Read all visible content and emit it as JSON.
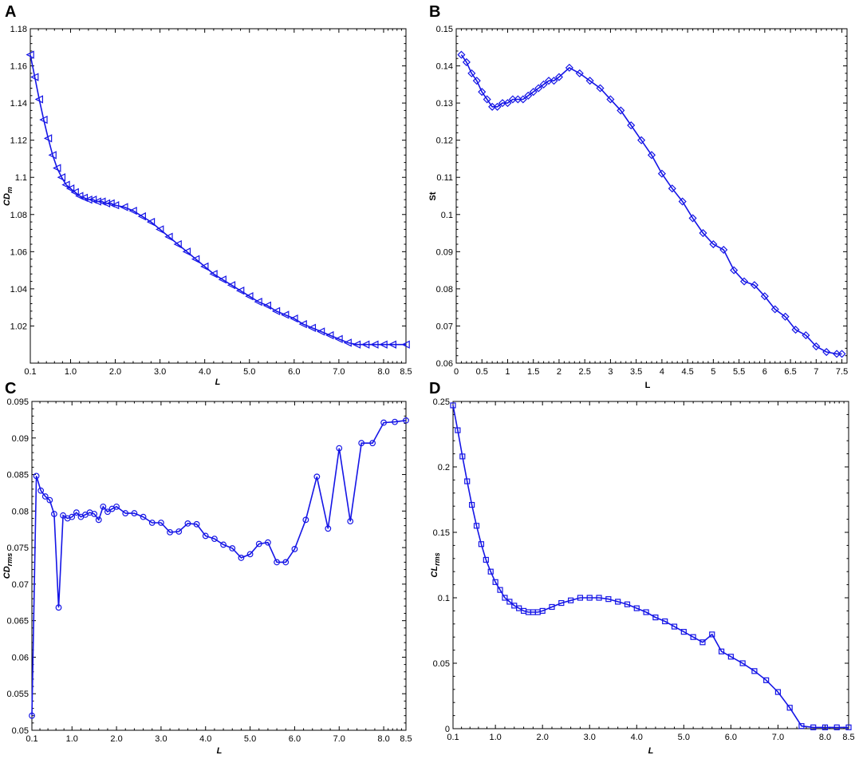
{
  "chart_data": [
    {
      "panel": "A",
      "type": "line",
      "marker": "triangle-left",
      "color": "#1515e6",
      "xlabel": "L",
      "ylabel": "CD",
      "ylabel_sub": "m",
      "xlim": [
        0.1,
        8.5
      ],
      "ylim": [
        1.0,
        1.18
      ],
      "x_ticks": [
        0.1,
        1.0,
        2.0,
        3.0,
        4.0,
        5.0,
        6.0,
        7.0,
        8.0,
        8.5
      ],
      "x_tick_labels": [
        "0.1",
        "1.0",
        "2.0",
        "3.0",
        "4.0",
        "5.0",
        "6.0",
        "7.0",
        "8.0",
        "8.5"
      ],
      "y_ticks": [
        1.02,
        1.04,
        1.06,
        1.08,
        1.1,
        1.12,
        1.14,
        1.16,
        1.18
      ],
      "y_tick_labels": [
        "1.02",
        "1.04",
        "1.06",
        "1.08",
        "1.1",
        "1.12",
        "1.14",
        "1.16",
        "1.18"
      ],
      "x": [
        0.1,
        0.2,
        0.3,
        0.4,
        0.5,
        0.6,
        0.7,
        0.8,
        0.9,
        1.0,
        1.1,
        1.2,
        1.3,
        1.4,
        1.5,
        1.6,
        1.7,
        1.8,
        1.9,
        2.0,
        2.2,
        2.4,
        2.6,
        2.8,
        3.0,
        3.2,
        3.4,
        3.6,
        3.8,
        4.0,
        4.2,
        4.4,
        4.6,
        4.8,
        5.0,
        5.2,
        5.4,
        5.6,
        5.8,
        6.0,
        6.2,
        6.4,
        6.6,
        6.8,
        7.0,
        7.2,
        7.4,
        7.6,
        7.8,
        8.0,
        8.2,
        8.5
      ],
      "y": [
        1.166,
        1.154,
        1.142,
        1.131,
        1.121,
        1.112,
        1.105,
        1.1,
        1.096,
        1.094,
        1.092,
        1.09,
        1.089,
        1.088,
        1.088,
        1.087,
        1.087,
        1.086,
        1.086,
        1.085,
        1.084,
        1.082,
        1.079,
        1.076,
        1.072,
        1.068,
        1.064,
        1.06,
        1.056,
        1.052,
        1.048,
        1.045,
        1.042,
        1.039,
        1.036,
        1.033,
        1.031,
        1.028,
        1.026,
        1.024,
        1.021,
        1.019,
        1.017,
        1.015,
        1.013,
        1.011,
        1.01,
        1.01,
        1.01,
        1.01,
        1.01,
        1.01
      ]
    },
    {
      "panel": "B",
      "type": "line",
      "marker": "diamond",
      "color": "#1515e6",
      "xlabel": "L",
      "ylabel": "St",
      "ylabel_sub": "",
      "xlim": [
        0,
        7.6
      ],
      "ylim": [
        0.06,
        0.15
      ],
      "x_ticks": [
        0,
        0.5,
        1,
        1.5,
        2,
        2.5,
        3,
        3.5,
        4,
        4.5,
        5,
        5.5,
        6,
        6.5,
        7,
        7.5
      ],
      "x_tick_labels": [
        "0",
        "0.5",
        "1",
        "1.5",
        "2",
        "2.5",
        "3",
        "3.5",
        "4",
        "4.5",
        "5",
        "5.5",
        "6",
        "6.5",
        "7",
        "7.5"
      ],
      "y_ticks": [
        0.06,
        0.07,
        0.08,
        0.09,
        0.1,
        0.11,
        0.12,
        0.13,
        0.14,
        0.15
      ],
      "y_tick_labels": [
        "0.06",
        "0.07",
        "0.08",
        "0.09",
        "0.1",
        "0.11",
        "0.12",
        "0.13",
        "0.14",
        "0.15"
      ],
      "x": [
        0.1,
        0.2,
        0.3,
        0.4,
        0.5,
        0.6,
        0.7,
        0.8,
        0.9,
        1.0,
        1.1,
        1.2,
        1.3,
        1.4,
        1.5,
        1.6,
        1.7,
        1.8,
        1.9,
        2.0,
        2.2,
        2.4,
        2.6,
        2.8,
        3.0,
        3.2,
        3.4,
        3.6,
        3.8,
        4.0,
        4.2,
        4.4,
        4.6,
        4.8,
        5.0,
        5.2,
        5.4,
        5.6,
        5.8,
        6.0,
        6.2,
        6.4,
        6.6,
        6.8,
        7.0,
        7.2,
        7.4,
        7.5
      ],
      "y": [
        0.143,
        0.141,
        0.138,
        0.136,
        0.133,
        0.131,
        0.129,
        0.129,
        0.13,
        0.13,
        0.131,
        0.131,
        0.131,
        0.132,
        0.133,
        0.134,
        0.135,
        0.136,
        0.136,
        0.137,
        0.1395,
        0.138,
        0.136,
        0.134,
        0.131,
        0.128,
        0.124,
        0.12,
        0.116,
        0.111,
        0.107,
        0.1035,
        0.099,
        0.095,
        0.092,
        0.0905,
        0.085,
        0.082,
        0.081,
        0.078,
        0.0745,
        0.0725,
        0.069,
        0.0675,
        0.0645,
        0.063,
        0.0625,
        0.0625
      ]
    },
    {
      "panel": "C",
      "type": "line",
      "marker": "circle",
      "color": "#1515e6",
      "xlabel": "L",
      "ylabel": "CD",
      "ylabel_sub": "rms",
      "xlim": [
        0.1,
        8.5
      ],
      "ylim": [
        0.05,
        0.095
      ],
      "x_ticks": [
        0.1,
        1.0,
        2.0,
        3.0,
        4.0,
        5.0,
        6.0,
        7.0,
        8.0,
        8.5
      ],
      "x_tick_labels": [
        "0.1",
        "1.0",
        "2.0",
        "3.0",
        "4.0",
        "5.0",
        "6.0",
        "7.0",
        "8.0",
        "8.5"
      ],
      "y_ticks": [
        0.05,
        0.055,
        0.06,
        0.065,
        0.07,
        0.075,
        0.08,
        0.085,
        0.09,
        0.095
      ],
      "y_tick_labels": [
        "0.05",
        "0.055",
        "0.06",
        "0.065",
        "0.07",
        "0.075",
        "0.08",
        "0.085",
        "0.09",
        "0.095"
      ],
      "x": [
        0.1,
        0.2,
        0.3,
        0.4,
        0.5,
        0.6,
        0.7,
        0.8,
        0.9,
        1.0,
        1.1,
        1.2,
        1.3,
        1.4,
        1.5,
        1.6,
        1.7,
        1.8,
        1.9,
        2.0,
        2.2,
        2.4,
        2.6,
        2.8,
        3.0,
        3.2,
        3.4,
        3.6,
        3.8,
        4.0,
        4.2,
        4.4,
        4.6,
        4.8,
        5.0,
        5.2,
        5.4,
        5.6,
        5.8,
        6.0,
        6.25,
        6.5,
        6.75,
        7.0,
        7.25,
        7.5,
        7.75,
        8.0,
        8.25,
        8.5
      ],
      "y": [
        0.052,
        0.0848,
        0.0828,
        0.082,
        0.0815,
        0.0796,
        0.0668,
        0.0794,
        0.079,
        0.0792,
        0.0798,
        0.0792,
        0.0795,
        0.0798,
        0.0796,
        0.0788,
        0.0806,
        0.0799,
        0.0803,
        0.0806,
        0.0797,
        0.0797,
        0.0792,
        0.0784,
        0.0784,
        0.0771,
        0.0772,
        0.0783,
        0.0782,
        0.0766,
        0.0762,
        0.0754,
        0.0749,
        0.0736,
        0.0741,
        0.0755,
        0.0757,
        0.073,
        0.073,
        0.0748,
        0.0788,
        0.0847,
        0.0776,
        0.0886,
        0.0786,
        0.0893,
        0.0893,
        0.0921,
        0.0922,
        0.0924
      ]
    },
    {
      "panel": "D",
      "type": "line",
      "marker": "square",
      "color": "#1515e6",
      "xlabel": "L",
      "ylabel": "CL",
      "ylabel_sub": "rms",
      "xlim": [
        0.1,
        8.5
      ],
      "ylim": [
        0,
        0.25
      ],
      "x_ticks": [
        0.1,
        1.0,
        2.0,
        3.0,
        4.0,
        5.0,
        6.0,
        7.0,
        8.0,
        8.5
      ],
      "x_tick_labels": [
        "0.1",
        "1.0",
        "2.0",
        "3.0",
        "4.0",
        "5.0",
        "6.0",
        "7.0",
        "8.0",
        "8.5"
      ],
      "y_ticks": [
        0,
        0.05,
        0.1,
        0.15,
        0.2,
        0.25
      ],
      "y_tick_labels": [
        "0",
        "0.05",
        "0.1",
        "0.15",
        "0.2",
        "0.25"
      ],
      "x": [
        0.1,
        0.2,
        0.3,
        0.4,
        0.5,
        0.6,
        0.7,
        0.8,
        0.9,
        1.0,
        1.1,
        1.2,
        1.3,
        1.4,
        1.5,
        1.6,
        1.7,
        1.8,
        1.9,
        2.0,
        2.2,
        2.4,
        2.6,
        2.8,
        3.0,
        3.2,
        3.4,
        3.6,
        3.8,
        4.0,
        4.2,
        4.4,
        4.6,
        4.8,
        5.0,
        5.2,
        5.4,
        5.6,
        5.8,
        6.0,
        6.25,
        6.5,
        6.75,
        7.0,
        7.25,
        7.5,
        7.75,
        8.0,
        8.25,
        8.5
      ],
      "y": [
        0.247,
        0.228,
        0.208,
        0.189,
        0.171,
        0.155,
        0.141,
        0.129,
        0.12,
        0.112,
        0.106,
        0.1,
        0.097,
        0.094,
        0.092,
        0.09,
        0.089,
        0.089,
        0.089,
        0.09,
        0.093,
        0.096,
        0.098,
        0.1,
        0.1,
        0.1,
        0.099,
        0.097,
        0.095,
        0.092,
        0.089,
        0.085,
        0.082,
        0.078,
        0.074,
        0.07,
        0.066,
        0.072,
        0.059,
        0.055,
        0.05,
        0.044,
        0.037,
        0.028,
        0.016,
        0.002,
        0.001,
        0.001,
        0.001,
        0.001
      ]
    }
  ]
}
